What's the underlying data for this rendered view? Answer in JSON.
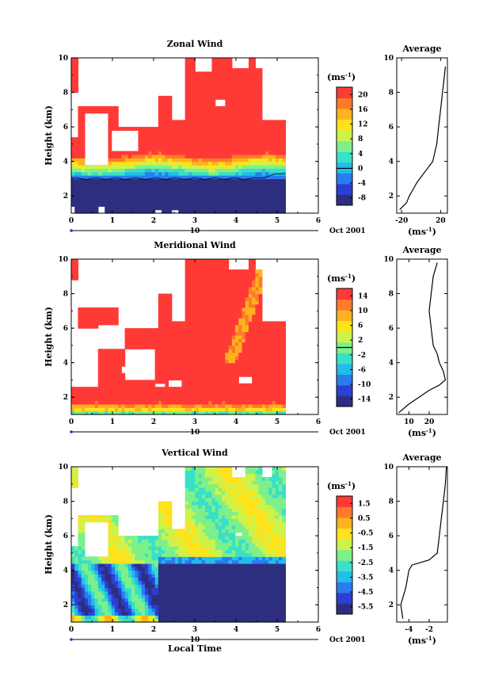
{
  "chart_data": [
    {
      "type": "heatmap",
      "title": "Zonal Wind",
      "ylabel": "Height (km)",
      "xticks": [
        "0",
        "1",
        "2",
        "3",
        "4",
        "5",
        "6"
      ],
      "yticks": [
        "2",
        "4",
        "6",
        "8",
        "10"
      ],
      "xlim": [
        0,
        6
      ],
      "ylim": [
        1,
        10
      ],
      "date_label": "Oct 2001",
      "day_label": "10",
      "colorbar_unit": "(ms",
      "colorbar_unit_exp": "-1",
      "colorbar_ticks": [
        "20",
        "16",
        "12",
        "8",
        "4",
        "0",
        "-4",
        "-8"
      ],
      "colorbar_range": [
        -10,
        22
      ],
      "zero_contour_height_km": 3.0,
      "profile": {
        "title": "Average",
        "xlabel": "(ms",
        "xlabel_exp": "-1",
        "xticks": [
          "-20",
          "20"
        ],
        "xlim": [
          -25,
          27
        ],
        "yticks": [
          "2",
          "4",
          "6",
          "8",
          "10"
        ],
        "ylim": [
          1,
          10
        ],
        "points": [
          [
            -22,
            1.2
          ],
          [
            -15,
            1.6
          ],
          [
            -12,
            2.0
          ],
          [
            -8,
            2.4
          ],
          [
            -4,
            2.8
          ],
          [
            0,
            3.1
          ],
          [
            4,
            3.4
          ],
          [
            8,
            3.7
          ],
          [
            12,
            4.0
          ],
          [
            14,
            4.5
          ],
          [
            16,
            5.0
          ],
          [
            18,
            6.0
          ],
          [
            20,
            7.0
          ],
          [
            22,
            8.0
          ],
          [
            24,
            9.0
          ],
          [
            25,
            9.5
          ]
        ]
      }
    },
    {
      "type": "heatmap",
      "title": "Meridional Wind",
      "ylabel": "Height (km)",
      "xticks": [
        "0",
        "1",
        "2",
        "3",
        "4",
        "5",
        "6"
      ],
      "yticks": [
        "2",
        "4",
        "6",
        "8",
        "10"
      ],
      "xlim": [
        0,
        6
      ],
      "ylim": [
        1,
        10
      ],
      "date_label": "Oct 2001",
      "day_label": "10",
      "colorbar_unit": "(ms",
      "colorbar_unit_exp": "-1",
      "colorbar_ticks": [
        "14",
        "10",
        "6",
        "2",
        "-2",
        "-6",
        "-10",
        "-14"
      ],
      "colorbar_range": [
        -16,
        16
      ],
      "profile": {
        "title": "Average",
        "xlabel": "(ms",
        "xlabel_exp": "-1",
        "xticks": [
          "10",
          "20"
        ],
        "xlim": [
          4,
          29
        ],
        "yticks": [
          "2",
          "4",
          "6",
          "8",
          "10"
        ],
        "ylim": [
          1,
          10
        ],
        "points": [
          [
            5,
            1.1
          ],
          [
            10,
            1.6
          ],
          [
            15,
            2.0
          ],
          [
            20,
            2.4
          ],
          [
            25,
            2.7
          ],
          [
            28,
            3.0
          ],
          [
            27,
            3.5
          ],
          [
            25,
            4.0
          ],
          [
            24,
            4.5
          ],
          [
            22,
            5.0
          ],
          [
            21,
            6.0
          ],
          [
            20,
            7.0
          ],
          [
            21,
            8.0
          ],
          [
            22,
            9.0
          ],
          [
            24,
            9.8
          ]
        ]
      }
    },
    {
      "type": "heatmap",
      "title": "Vertical Wind",
      "ylabel": "Height (km)",
      "xlabel": "Local Time",
      "xticks": [
        "0",
        "1",
        "2",
        "3",
        "4",
        "5",
        "6"
      ],
      "yticks": [
        "2",
        "4",
        "6",
        "8",
        "10"
      ],
      "xlim": [
        0,
        6
      ],
      "ylim": [
        1,
        10
      ],
      "date_label": "Oct 2001",
      "day_label": "10",
      "colorbar_unit": "(ms",
      "colorbar_unit_exp": "-1",
      "colorbar_ticks": [
        "1.5",
        "0.5",
        "-0.5",
        "-1.5",
        "-2.5",
        "-3.5",
        "-4.5",
        "-5.5"
      ],
      "colorbar_range": [
        -6,
        2
      ],
      "profile": {
        "title": "Average",
        "xlabel": "(ms",
        "xlabel_exp": "-1",
        "xticks": [
          "-4",
          "-2"
        ],
        "xlim": [
          -5.2,
          -0.2
        ],
        "yticks": [
          "2",
          "4",
          "6",
          "8",
          "10"
        ],
        "ylim": [
          1,
          10
        ],
        "points": [
          [
            -4.6,
            1.2
          ],
          [
            -4.8,
            2.0
          ],
          [
            -4.3,
            3.0
          ],
          [
            -4.0,
            4.0
          ],
          [
            -3.7,
            4.3
          ],
          [
            -2.0,
            4.6
          ],
          [
            -1.2,
            5.0
          ],
          [
            -1.0,
            6.0
          ],
          [
            -0.8,
            7.0
          ],
          [
            -0.6,
            8.0
          ],
          [
            -0.4,
            9.0
          ],
          [
            -0.3,
            10.0
          ]
        ]
      }
    }
  ]
}
